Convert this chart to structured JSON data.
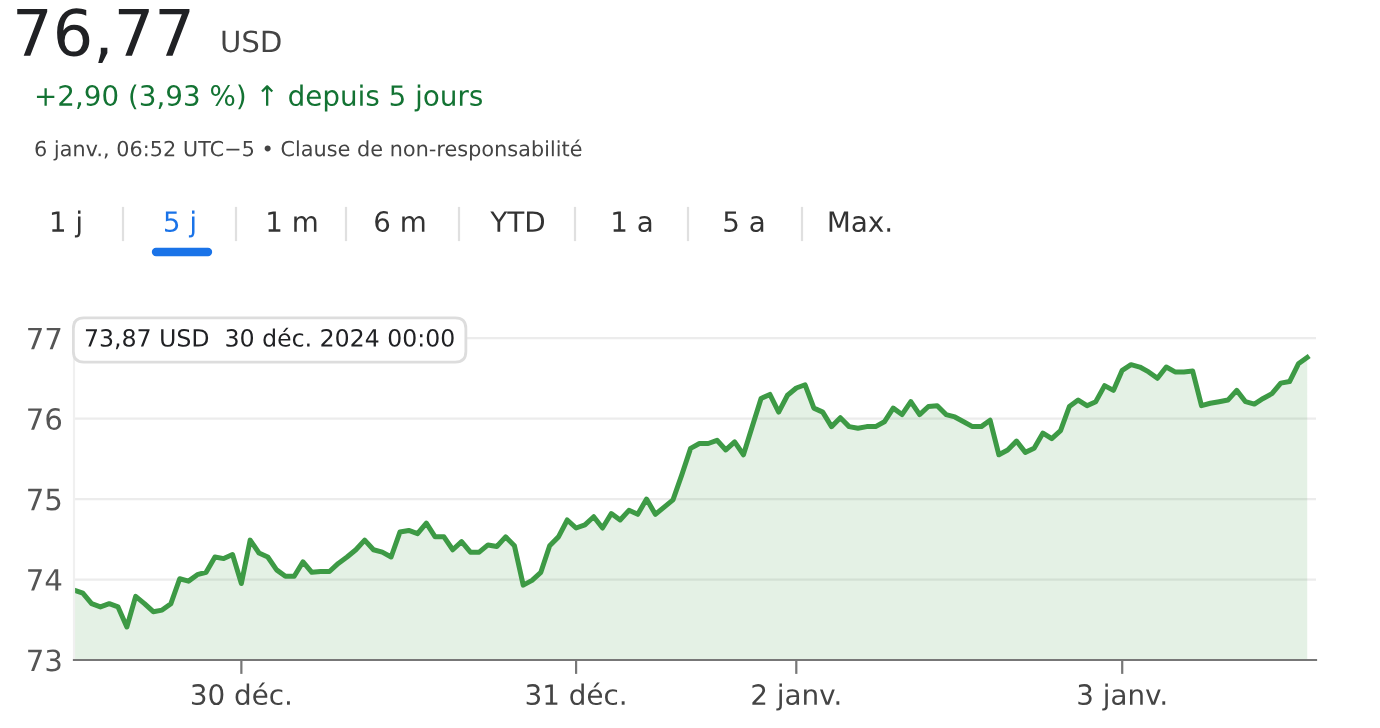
{
  "chart_data": {
    "type": "area",
    "title": "76,77",
    "subtitle": "+2,90 (3,93 %) ↑ depuis 5 jours",
    "annotations": [
      "USD",
      "6 janv., 06:52 UTC−5 • Clause de non-responsabilité",
      "1 j",
      "5 j",
      "1 m",
      "6 m",
      "YTD",
      "1 a",
      "5 a",
      "Max.",
      "73,87 USD  30 déc. 2024 00:00"
    ],
    "categories": [
      null,
      null,
      null,
      null,
      null,
      null,
      null,
      null,
      null,
      null,
      null,
      null,
      null,
      null,
      null,
      null,
      null,
      null,
      null,
      "30 déc.",
      null,
      null,
      null,
      null,
      null,
      null,
      null,
      null,
      null,
      null,
      null,
      null,
      null,
      null,
      null,
      null,
      null,
      null,
      null,
      null,
      null,
      null,
      null,
      null,
      null,
      null,
      null,
      null,
      null,
      null,
      null,
      null,
      null,
      null,
      null,
      null,
      null,
      "31 déc.",
      null,
      null,
      null,
      null,
      null,
      null,
      null,
      null,
      null,
      null,
      null,
      null,
      null,
      null,
      null,
      null,
      null,
      null,
      null,
      null,
      null,
      null,
      null,
      null,
      "2 janv.",
      null,
      null,
      null,
      null,
      null,
      null,
      null,
      null,
      null,
      null,
      null,
      null,
      null,
      null,
      null,
      null,
      null,
      null,
      null,
      null,
      null,
      null,
      null,
      null,
      null,
      null,
      null,
      null,
      null,
      null,
      null,
      null,
      null,
      null,
      null,
      null,
      "3 janv.",
      null,
      null,
      null,
      null,
      null,
      null,
      null,
      null,
      null,
      null,
      null,
      null,
      null,
      null,
      null,
      null,
      null,
      null,
      null,
      null,
      null
    ],
    "series": [
      {
        "color": "#3d9a45",
        "values": [
          73.87,
          73.83,
          73.7,
          73.66,
          73.7,
          73.66,
          73.41,
          73.79,
          73.7,
          73.6,
          73.62,
          73.7,
          74.01,
          73.98,
          74.06,
          74.09,
          74.28,
          74.26,
          74.31,
          73.95,
          74.49,
          74.33,
          74.28,
          74.12,
          74.04,
          74.04,
          74.22,
          74.09,
          74.1,
          74.1,
          74.2,
          74.28,
          74.37,
          74.49,
          74.37,
          74.34,
          74.28,
          74.59,
          74.61,
          74.57,
          74.7,
          74.53,
          74.53,
          74.37,
          74.47,
          74.34,
          74.34,
          74.43,
          74.41,
          74.53,
          74.42,
          73.93,
          73.99,
          74.09,
          74.42,
          74.53,
          74.74,
          74.64,
          74.68,
          74.78,
          74.64,
          74.82,
          74.74,
          74.86,
          74.81,
          75.0,
          74.81,
          74.9,
          74.99,
          75.3,
          75.63,
          75.69,
          75.69,
          75.73,
          75.61,
          75.71,
          75.55,
          75.9,
          76.25,
          76.3,
          76.08,
          76.29,
          76.38,
          76.42,
          76.13,
          76.08,
          75.9,
          76.01,
          75.9,
          75.88,
          75.9,
          75.9,
          75.96,
          76.13,
          76.05,
          76.21,
          76.05,
          76.15,
          76.16,
          76.05,
          76.02,
          75.96,
          75.9,
          75.9,
          75.98,
          75.55,
          75.61,
          75.72,
          75.58,
          75.63,
          75.82,
          75.75,
          75.85,
          76.15,
          76.23,
          76.16,
          76.21,
          76.41,
          76.35,
          76.6,
          76.67,
          76.64,
          76.58,
          76.5,
          76.64,
          76.58,
          76.58,
          76.59,
          76.16,
          76.19,
          76.21,
          76.23,
          76.35,
          76.21,
          76.18,
          76.25,
          76.31,
          76.44,
          76.46,
          76.68,
          76.76
        ]
      }
    ],
    "ylim": [
      73,
      77.2
    ],
    "yticks": [
      73,
      74,
      75,
      76,
      77
    ],
    "grid": "y"
  }
}
